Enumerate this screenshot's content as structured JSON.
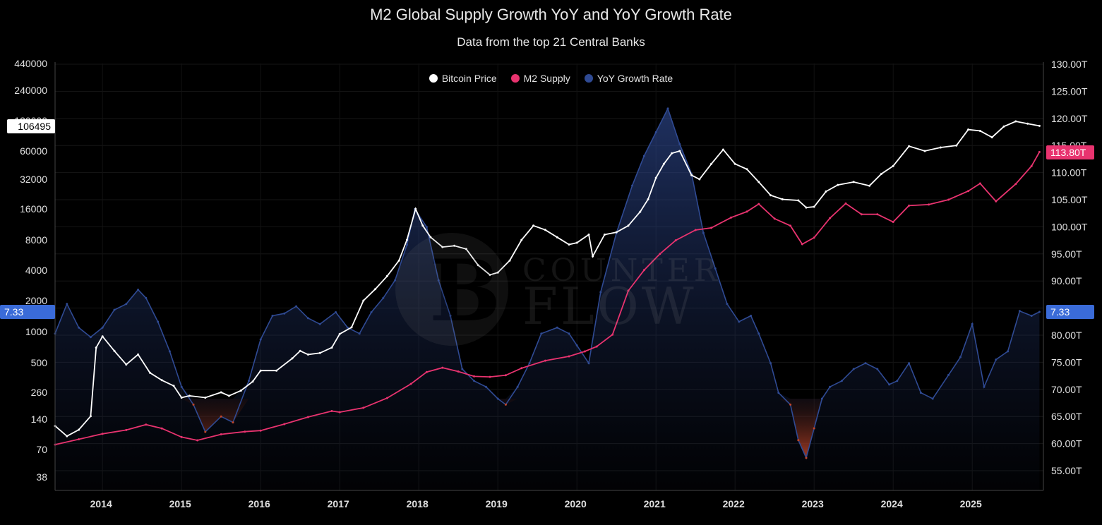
{
  "chart_data": {
    "type": "line",
    "title": "M2 Global Supply Growth YoY and YoY Growth Rate",
    "subtitle": "Data from the top 21 Central Banks",
    "legend": {
      "placement": "top-center",
      "entries": [
        "Bitcoin Price",
        "M2 Supply",
        "YoY Growth Rate"
      ]
    },
    "colors": {
      "bitcoin": "#ffffff",
      "m2": "#e8336f",
      "growth": "#2f4a93",
      "growth_fill": "#1b2a55",
      "negative": "#c0452a",
      "bg": "#000000",
      "label_blue": "#3a6bd8",
      "label_pink": "#e8336f"
    },
    "x_ticks": [
      "2014",
      "2015",
      "2016",
      "2017",
      "2018",
      "2019",
      "2020",
      "2021",
      "2022",
      "2023",
      "2024",
      "2025"
    ],
    "left_axis": {
      "scale": "log",
      "ticks": [
        "440000",
        "240000",
        "120000",
        "60000",
        "32000",
        "16000",
        "8000",
        "4000",
        "2000",
        "1000",
        "500",
        "260",
        "140",
        "70",
        "38"
      ]
    },
    "right_axis": {
      "unit": "T",
      "ticks": [
        "130.00T",
        "125.00T",
        "120.00T",
        "115.00T",
        "110.00T",
        "105.00T",
        "100.00T",
        "95.00T",
        "90.00T",
        "85.00T",
        "80.00T",
        "75.00T",
        "70.00T",
        "65.00T",
        "60.00T",
        "55.00T"
      ]
    },
    "current_labels": {
      "bitcoin": "106495",
      "m2": "113.80T",
      "growth_left": "7.33",
      "growth_right": "7.33"
    },
    "series": [
      {
        "name": "Bitcoin Price",
        "axis": "left",
        "x": [
          2013.4,
          2013.55,
          2013.7,
          2013.85,
          2013.92,
          2014.0,
          2014.15,
          2014.3,
          2014.45,
          2014.6,
          2014.75,
          2014.9,
          2015.0,
          2015.1,
          2015.3,
          2015.5,
          2015.6,
          2015.75,
          2015.9,
          2016.0,
          2016.2,
          2016.4,
          2016.5,
          2016.6,
          2016.75,
          2016.9,
          2017.0,
          2017.15,
          2017.3,
          2017.45,
          2017.6,
          2017.75,
          2017.85,
          2017.96,
          2018.05,
          2018.15,
          2018.3,
          2018.45,
          2018.6,
          2018.75,
          2018.9,
          2019.0,
          2019.15,
          2019.3,
          2019.45,
          2019.6,
          2019.75,
          2019.9,
          2020.0,
          2020.15,
          2020.2,
          2020.35,
          2020.5,
          2020.65,
          2020.8,
          2020.9,
          2021.0,
          2021.1,
          2021.2,
          2021.3,
          2021.45,
          2021.55,
          2021.7,
          2021.85,
          2022.0,
          2022.15,
          2022.3,
          2022.45,
          2022.6,
          2022.8,
          2022.9,
          2023.0,
          2023.15,
          2023.3,
          2023.5,
          2023.7,
          2023.85,
          2024.0,
          2024.2,
          2024.4,
          2024.6,
          2024.8,
          2024.95,
          2025.1,
          2025.25,
          2025.4,
          2025.55,
          2025.7,
          2025.85
        ],
        "y": [
          120,
          95,
          110,
          150,
          700,
          900,
          650,
          480,
          600,
          400,
          340,
          300,
          230,
          240,
          230,
          260,
          240,
          270,
          330,
          420,
          420,
          550,
          650,
          600,
          620,
          700,
          950,
          1100,
          2000,
          2600,
          3500,
          5000,
          8000,
          16000,
          11000,
          8500,
          6800,
          7000,
          6500,
          4500,
          3600,
          3800,
          5000,
          8000,
          11000,
          10000,
          8500,
          7200,
          7500,
          9000,
          5500,
          9000,
          9500,
          11000,
          15000,
          20000,
          33000,
          45000,
          57000,
          60000,
          35000,
          32000,
          45000,
          62000,
          45000,
          40000,
          30000,
          22000,
          20000,
          19500,
          16500,
          16800,
          24000,
          28000,
          30000,
          27500,
          36000,
          43000,
          67000,
          60000,
          65000,
          68000,
          98000,
          95000,
          82000,
          105000,
          118000,
          112000,
          106495
        ]
      },
      {
        "name": "M2 Supply",
        "axis": "right",
        "x": [
          2013.4,
          2013.7,
          2014.0,
          2014.3,
          2014.55,
          2014.75,
          2015.0,
          2015.2,
          2015.5,
          2015.8,
          2016.0,
          2016.3,
          2016.6,
          2016.9,
          2017.0,
          2017.3,
          2017.6,
          2017.9,
          2018.1,
          2018.3,
          2018.5,
          2018.7,
          2018.9,
          2019.1,
          2019.3,
          2019.6,
          2019.9,
          2020.1,
          2020.25,
          2020.45,
          2020.65,
          2020.85,
          2021.05,
          2021.25,
          2021.5,
          2021.7,
          2021.95,
          2022.15,
          2022.3,
          2022.5,
          2022.7,
          2022.85,
          2023.0,
          2023.2,
          2023.4,
          2023.6,
          2023.8,
          2024.0,
          2024.2,
          2024.45,
          2024.7,
          2024.95,
          2025.1,
          2025.3,
          2025.55,
          2025.75,
          2025.85
        ],
        "y": [
          59.8,
          60.8,
          61.8,
          62.5,
          63.5,
          62.8,
          61.2,
          60.6,
          61.7,
          62.2,
          62.4,
          63.6,
          64.9,
          66.0,
          65.8,
          66.6,
          68.4,
          71.0,
          73.2,
          74.0,
          73.3,
          72.4,
          72.3,
          72.6,
          73.9,
          75.3,
          76.1,
          77.0,
          77.9,
          80.1,
          88.2,
          92.0,
          95.0,
          97.5,
          99.4,
          99.8,
          101.7,
          102.8,
          104.2,
          101.5,
          100.2,
          96.8,
          98.0,
          101.6,
          104.3,
          102.3,
          102.3,
          100.9,
          103.9,
          104.1,
          105.0,
          106.6,
          108.0,
          104.7,
          107.9,
          111.2,
          113.8
        ]
      },
      {
        "name": "YoY Growth Rate",
        "axis": "left_overlay",
        "x": [
          2013.4,
          2013.55,
          2013.7,
          2013.85,
          2014.0,
          2014.15,
          2014.3,
          2014.45,
          2014.55,
          2014.7,
          2014.85,
          2015.0,
          2015.15,
          2015.3,
          2015.5,
          2015.65,
          2015.85,
          2016.0,
          2016.15,
          2016.3,
          2016.45,
          2016.6,
          2016.75,
          2016.95,
          2017.1,
          2017.25,
          2017.4,
          2017.55,
          2017.7,
          2017.85,
          2017.95,
          2018.1,
          2018.25,
          2018.4,
          2018.55,
          2018.7,
          2018.85,
          2019.0,
          2019.1,
          2019.25,
          2019.4,
          2019.55,
          2019.75,
          2019.9,
          2020.0,
          2020.15,
          2020.3,
          2020.5,
          2020.7,
          2020.85,
          2021.0,
          2021.15,
          2021.3,
          2021.45,
          2021.6,
          2021.75,
          2021.9,
          2022.05,
          2022.2,
          2022.3,
          2022.45,
          2022.55,
          2022.7,
          2022.8,
          2022.9,
          2023.0,
          2023.1,
          2023.2,
          2023.35,
          2023.5,
          2023.65,
          2023.8,
          2023.95,
          2024.05,
          2024.2,
          2024.35,
          2024.5,
          2024.7,
          2024.85,
          2025.0,
          2025.15,
          2025.3,
          2025.45,
          2025.6,
          2025.75,
          2025.85
        ],
        "y": [
          5.5,
          8.0,
          6.0,
          5.2,
          6.0,
          7.5,
          8.0,
          9.2,
          8.5,
          6.5,
          4.0,
          1.0,
          -0.5,
          -2.8,
          -1.5,
          -2.0,
          1.5,
          5.0,
          7.0,
          7.2,
          7.8,
          6.8,
          6.3,
          7.3,
          6.0,
          5.5,
          7.3,
          8.5,
          10.0,
          13.0,
          16.0,
          14.5,
          10.0,
          7.0,
          2.5,
          1.5,
          1.0,
          0.0,
          -0.5,
          1.0,
          3.0,
          5.5,
          6.0,
          5.5,
          4.5,
          3.0,
          9.0,
          14.0,
          18.0,
          20.5,
          22.5,
          24.5,
          21.5,
          19.0,
          14.0,
          11.0,
          8.0,
          6.5,
          7.0,
          5.5,
          3.0,
          0.5,
          -0.5,
          -3.5,
          -5.0,
          -2.5,
          0.0,
          1.0,
          1.5,
          2.5,
          3.0,
          2.5,
          1.2,
          1.5,
          3.0,
          0.5,
          0.0,
          2.0,
          3.5,
          6.3,
          1.0,
          3.3,
          4.0,
          7.4,
          7.0,
          7.33
        ]
      }
    ]
  }
}
